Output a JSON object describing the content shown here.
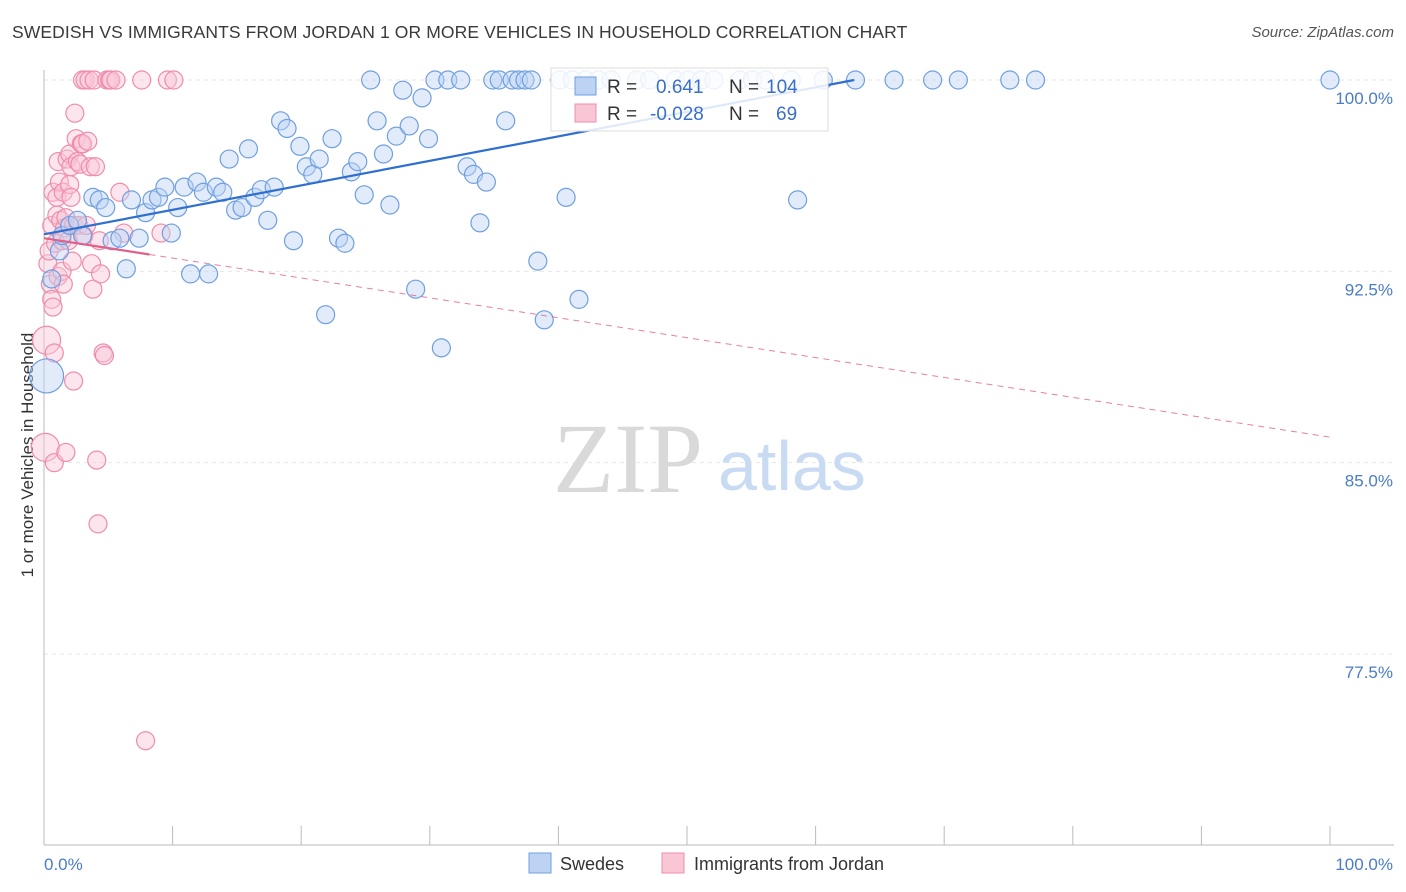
{
  "title": "SWEDISH VS IMMIGRANTS FROM JORDAN 1 OR MORE VEHICLES IN HOUSEHOLD CORRELATION CHART",
  "source": "Source: ZipAtlas.com",
  "watermark": {
    "zip": "ZIP",
    "atlas": "atlas"
  },
  "colors": {
    "swedes": "#6f9fe0",
    "jordan": "#f08cab",
    "swedes_line": "#2f6fcf",
    "jordan_line": "#e0608a",
    "tick_text": "#4a7cc7"
  },
  "stats": {
    "r_label": "R =",
    "n_label": "N =",
    "swedes": {
      "r": "0.641",
      "n": "104"
    },
    "jordan": {
      "r": "-0.028",
      "n": "69"
    }
  },
  "chart_data": {
    "type": "scatter",
    "xlabel": "",
    "ylabel": "1 or more Vehicles in Household",
    "xlim": [
      0,
      100
    ],
    "ylim": [
      70.0,
      100.7
    ],
    "x_tick_labels": [
      "0.0%",
      "100.0%"
    ],
    "y_ticks": [
      100.0,
      92.5,
      85.0,
      77.5
    ],
    "y_tick_labels": [
      "100.0%",
      "92.5%",
      "85.0%",
      "77.5%"
    ],
    "grid": true,
    "legend_position": "bottom-center",
    "series": [
      {
        "name": "Swedes",
        "points": [
          [
            0.2,
            88.4
          ],
          [
            0.6,
            92.2
          ],
          [
            1.2,
            93.3
          ],
          [
            1.4,
            93.9
          ],
          [
            2.0,
            94.3
          ],
          [
            2.6,
            94.5
          ],
          [
            3.0,
            93.9
          ],
          [
            3.8,
            95.4
          ],
          [
            4.3,
            95.3
          ],
          [
            4.8,
            95.0
          ],
          [
            5.3,
            93.7
          ],
          [
            5.9,
            93.8
          ],
          [
            6.4,
            92.6
          ],
          [
            6.8,
            95.3
          ],
          [
            7.4,
            93.8
          ],
          [
            7.9,
            94.8
          ],
          [
            8.4,
            95.3
          ],
          [
            8.9,
            95.4
          ],
          [
            9.4,
            95.8
          ],
          [
            9.9,
            94.0
          ],
          [
            10.4,
            95.0
          ],
          [
            10.9,
            95.8
          ],
          [
            11.4,
            92.4
          ],
          [
            11.9,
            96.0
          ],
          [
            12.4,
            95.6
          ],
          [
            12.8,
            92.4
          ],
          [
            13.4,
            95.8
          ],
          [
            13.9,
            95.6
          ],
          [
            14.4,
            96.9
          ],
          [
            14.9,
            94.9
          ],
          [
            15.4,
            95.0
          ],
          [
            15.9,
            97.3
          ],
          [
            16.4,
            95.4
          ],
          [
            16.9,
            95.7
          ],
          [
            17.4,
            94.5
          ],
          [
            17.9,
            95.8
          ],
          [
            18.4,
            98.4
          ],
          [
            18.9,
            98.1
          ],
          [
            19.4,
            93.7
          ],
          [
            19.9,
            97.4
          ],
          [
            20.4,
            96.6
          ],
          [
            20.9,
            96.3
          ],
          [
            21.4,
            96.9
          ],
          [
            21.9,
            90.8
          ],
          [
            22.4,
            97.7
          ],
          [
            22.9,
            93.8
          ],
          [
            23.4,
            93.6
          ],
          [
            23.9,
            96.4
          ],
          [
            24.4,
            96.8
          ],
          [
            24.9,
            95.5
          ],
          [
            25.4,
            100.0
          ],
          [
            25.9,
            98.4
          ],
          [
            26.4,
            97.1
          ],
          [
            26.9,
            95.1
          ],
          [
            27.4,
            97.8
          ],
          [
            27.9,
            99.6
          ],
          [
            28.4,
            98.2
          ],
          [
            28.9,
            91.8
          ],
          [
            29.4,
            99.3
          ],
          [
            29.9,
            97.7
          ],
          [
            30.4,
            100.0
          ],
          [
            30.9,
            89.5
          ],
          [
            31.4,
            100.0
          ],
          [
            32.4,
            100.0
          ],
          [
            32.9,
            96.6
          ],
          [
            33.4,
            96.3
          ],
          [
            33.9,
            94.4
          ],
          [
            34.4,
            96.0
          ],
          [
            34.9,
            100.0
          ],
          [
            35.4,
            100.0
          ],
          [
            35.9,
            98.4
          ],
          [
            36.4,
            100.0
          ],
          [
            36.9,
            100.0
          ],
          [
            37.4,
            100.0
          ],
          [
            37.9,
            100.0
          ],
          [
            38.4,
            92.9
          ],
          [
            38.9,
            90.6
          ],
          [
            40.1,
            100.0
          ],
          [
            40.6,
            95.4
          ],
          [
            41.1,
            100.0
          ],
          [
            41.6,
            91.4
          ],
          [
            42.1,
            100.0
          ],
          [
            43.1,
            100.0
          ],
          [
            44.1,
            100.0
          ],
          [
            46.1,
            100.0
          ],
          [
            47.1,
            100.0
          ],
          [
            49.1,
            100.0
          ],
          [
            50.1,
            100.0
          ],
          [
            51.1,
            100.0
          ],
          [
            52.1,
            100.0
          ],
          [
            54.1,
            100.0
          ],
          [
            55.1,
            100.0
          ],
          [
            56.1,
            100.0
          ],
          [
            58.1,
            100.0
          ],
          [
            58.6,
            95.3
          ],
          [
            60.6,
            100.0
          ],
          [
            63.1,
            100.0
          ],
          [
            66.1,
            100.0
          ],
          [
            69.1,
            100.0
          ],
          [
            71.1,
            100.0
          ],
          [
            75.1,
            100.0
          ],
          [
            77.1,
            100.0
          ],
          [
            100.0,
            100.0
          ]
        ]
      },
      {
        "name": "Immigrants from Jordan",
        "points": [
          [
            0.1,
            85.6
          ],
          [
            0.2,
            89.8
          ],
          [
            0.3,
            92.8
          ],
          [
            0.4,
            93.3
          ],
          [
            0.5,
            92.0
          ],
          [
            0.6,
            94.3
          ],
          [
            0.6,
            91.4
          ],
          [
            0.7,
            91.1
          ],
          [
            0.7,
            95.6
          ],
          [
            0.8,
            89.3
          ],
          [
            0.8,
            85.0
          ],
          [
            0.9,
            93.6
          ],
          [
            1.0,
            95.4
          ],
          [
            1.0,
            94.7
          ],
          [
            1.1,
            92.3
          ],
          [
            1.1,
            96.8
          ],
          [
            1.2,
            96.0
          ],
          [
            1.3,
            94.5
          ],
          [
            1.4,
            93.7
          ],
          [
            1.4,
            92.5
          ],
          [
            1.5,
            95.6
          ],
          [
            1.5,
            92.0
          ],
          [
            1.6,
            94.2
          ],
          [
            1.7,
            94.6
          ],
          [
            1.7,
            85.4
          ],
          [
            1.8,
            96.9
          ],
          [
            1.9,
            93.7
          ],
          [
            2.0,
            95.9
          ],
          [
            2.0,
            97.1
          ],
          [
            2.1,
            96.6
          ],
          [
            2.1,
            95.4
          ],
          [
            2.2,
            92.9
          ],
          [
            2.3,
            94.3
          ],
          [
            2.3,
            88.2
          ],
          [
            2.4,
            98.7
          ],
          [
            2.5,
            97.7
          ],
          [
            2.6,
            96.8
          ],
          [
            2.7,
            94.3
          ],
          [
            2.8,
            96.7
          ],
          [
            2.9,
            97.5
          ],
          [
            3.0,
            97.5
          ],
          [
            3.0,
            100.0
          ],
          [
            3.1,
            93.9
          ],
          [
            3.2,
            100.0
          ],
          [
            3.3,
            94.3
          ],
          [
            3.4,
            97.6
          ],
          [
            3.5,
            100.0
          ],
          [
            3.6,
            96.6
          ],
          [
            3.7,
            92.8
          ],
          [
            3.8,
            91.8
          ],
          [
            3.9,
            100.0
          ],
          [
            4.0,
            96.6
          ],
          [
            4.1,
            85.1
          ],
          [
            4.2,
            82.6
          ],
          [
            4.3,
            93.7
          ],
          [
            4.4,
            92.4
          ],
          [
            4.6,
            89.3
          ],
          [
            4.7,
            89.2
          ],
          [
            4.9,
            100.0
          ],
          [
            5.1,
            100.0
          ],
          [
            5.2,
            100.0
          ],
          [
            5.6,
            100.0
          ],
          [
            5.9,
            95.6
          ],
          [
            6.2,
            94.0
          ],
          [
            7.6,
            100.0
          ],
          [
            7.9,
            74.1
          ],
          [
            9.1,
            94.0
          ],
          [
            9.6,
            100.0
          ],
          [
            10.1,
            100.0
          ]
        ]
      }
    ],
    "trend_lines": [
      {
        "name": "Swedes",
        "x": [
          0,
          63
        ],
        "y": [
          93.95,
          100.0
        ],
        "dashed_from_x": null
      },
      {
        "name": "Immigrants from Jordan",
        "x": [
          0,
          100
        ],
        "y": [
          93.8,
          86.0
        ],
        "solid_until_x": 8.2
      }
    ]
  },
  "legend": {
    "swedes": "Swedes",
    "jordan": "Immigrants from Jordan"
  }
}
